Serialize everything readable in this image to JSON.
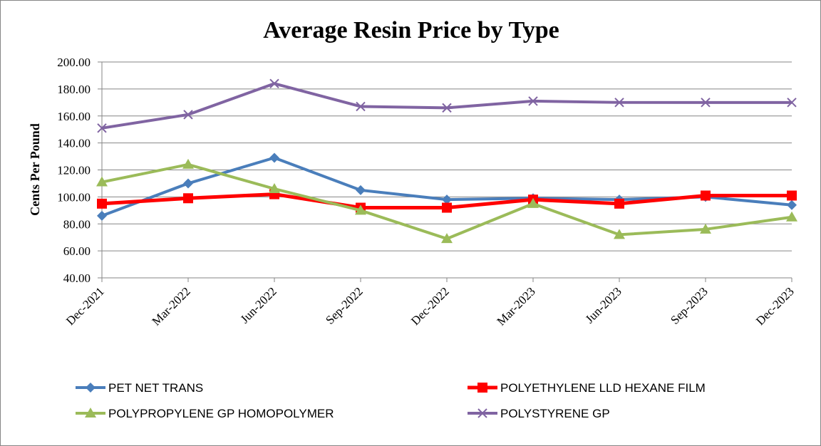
{
  "chart_data": {
    "type": "line",
    "title": "Average Resin Price by Type",
    "ylabel": "Cents Per Pound",
    "xlabel": "",
    "ylim": [
      40,
      200
    ],
    "y_ticks": [
      "40.00",
      "60.00",
      "80.00",
      "100.00",
      "120.00",
      "140.00",
      "160.00",
      "180.00",
      "200.00"
    ],
    "categories": [
      "Dec-2021",
      "Mar-2022",
      "Jun-2022",
      "Sep-2022",
      "Dec-2022",
      "Mar-2023",
      "Jun-2023",
      "Sep-2023",
      "Dec-2023"
    ],
    "grid": "horizontal",
    "legend_position": "bottom",
    "series": [
      {
        "name": "PET NET TRANS",
        "color": "#4A7EBB",
        "marker": "diamond",
        "values": [
          86,
          110,
          129,
          105,
          98,
          99,
          98,
          100,
          94
        ]
      },
      {
        "name": "POLYETHYLENE LLD HEXANE FILM",
        "color": "#FF0000",
        "marker": "square",
        "values": [
          95,
          99,
          102,
          92,
          92,
          98,
          95,
          101,
          101
        ]
      },
      {
        "name": "POLYPROPYLENE GP HOMOPOLYMER",
        "color": "#9BBB59",
        "marker": "triangle",
        "values": [
          111,
          124,
          106,
          90,
          69,
          95,
          72,
          76,
          85
        ]
      },
      {
        "name": "POLYSTYRENE GP",
        "color": "#8064A2",
        "marker": "x",
        "values": [
          151,
          161,
          184,
          167,
          166,
          171,
          170,
          170,
          170
        ]
      }
    ]
  }
}
